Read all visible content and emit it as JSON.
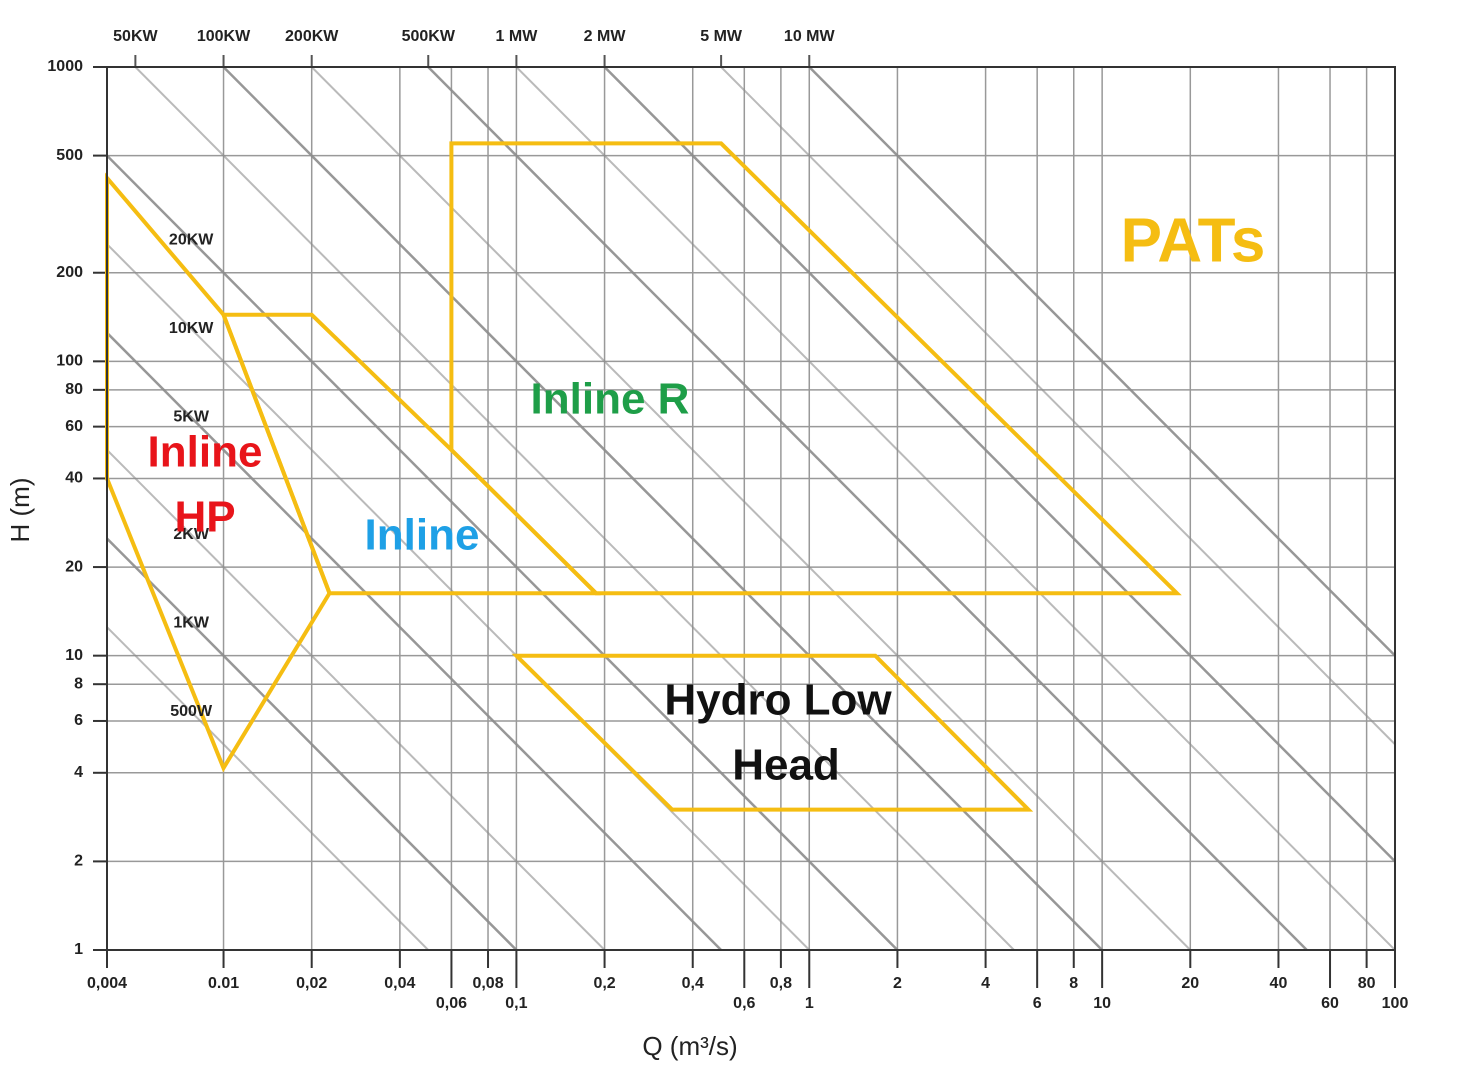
{
  "chart_data": {
    "type": "region",
    "x_label": "Q (m³/s)",
    "y_label": "H (m)",
    "xlim": [
      0.004,
      100
    ],
    "ylim": [
      1,
      1000
    ],
    "log_x": true,
    "log_y": true,
    "grid": true,
    "xticks": [
      {
        "value": 0.004,
        "label": "0,004"
      },
      0.01,
      {
        "value": 0.02,
        "label": "0,02"
      },
      {
        "value": 0.04,
        "label": "0,04"
      },
      {
        "value": 0.06,
        "label": "0,06"
      },
      {
        "value": 0.08,
        "label": "0,08"
      },
      {
        "value": 0.1,
        "label": "0,1"
      },
      {
        "value": 0.2,
        "label": "0,2"
      },
      {
        "value": 0.4,
        "label": "0,4"
      },
      {
        "value": 0.6,
        "label": "0,6"
      },
      {
        "value": 0.8,
        "label": "0,8"
      },
      1,
      2,
      4,
      6,
      8,
      10,
      20,
      40,
      60,
      80,
      100
    ],
    "yticks": [
      1,
      2,
      4,
      6,
      8,
      10,
      20,
      40,
      60,
      80,
      100,
      200,
      500,
      1000
    ],
    "power_lines": {
      "color": "#8c8c8c",
      "series": [
        {
          "name": "500W",
          "x": [
            5e-05,
            0.05
          ],
          "values": [
            1000,
            1
          ]
        },
        {
          "name": "1KW",
          "x": [
            0.0001,
            0.1
          ],
          "values": [
            1000,
            1
          ]
        },
        {
          "name": "2KW",
          "x": [
            0.0002,
            0.2
          ],
          "values": [
            1000,
            1
          ]
        },
        {
          "name": "5KW",
          "x": [
            0.0005,
            0.5
          ],
          "values": [
            1000,
            1
          ]
        },
        {
          "name": "10KW",
          "x": [
            0.001,
            1
          ],
          "values": [
            1000,
            1
          ]
        },
        {
          "name": "20KW",
          "x": [
            0.002,
            2
          ],
          "values": [
            1000,
            1
          ]
        },
        {
          "name": "50KW",
          "x": [
            0.005,
            5
          ],
          "values": [
            1000,
            1
          ]
        },
        {
          "name": "100KW",
          "x": [
            0.01,
            10
          ],
          "values": [
            1000,
            1
          ]
        },
        {
          "name": "200KW",
          "x": [
            0.02,
            20
          ],
          "values": [
            1000,
            1
          ]
        },
        {
          "name": "500KW",
          "x": [
            0.05,
            50
          ],
          "values": [
            1000,
            1
          ]
        },
        {
          "name": "1 MW",
          "x": [
            0.1,
            100
          ],
          "values": [
            1000,
            1
          ]
        },
        {
          "name": "2 MW",
          "x": [
            0.2,
            200
          ],
          "values": [
            1000,
            1
          ]
        },
        {
          "name": "5 MW",
          "x": [
            0.5,
            500
          ],
          "values": [
            1000,
            1
          ]
        },
        {
          "name": "10 MW",
          "x": [
            1,
            1000
          ],
          "values": [
            1000,
            1
          ]
        }
      ]
    },
    "regions": [
      {
        "label": [
          "Inline",
          "HP"
        ],
        "color": "#f5bd12",
        "label_color": "#e8141a",
        "x": [
          0.004,
          0.01,
          0.023,
          0.01,
          0.004
        ],
        "values": [
          420,
          144,
          16.3,
          4.15,
          40
        ]
      },
      {
        "label": [
          "Inline"
        ],
        "color": "#f5bd12",
        "label_color": "#1ea0e6",
        "x": [
          0.01,
          0.02,
          0.06,
          0.187,
          0.023
        ],
        "values": [
          144,
          144,
          50,
          16.3,
          16.3
        ]
      },
      {
        "label": [
          "Inline R"
        ],
        "color": "#f5bd12",
        "label_color": "#1e9e48",
        "x": [
          0.06,
          0.06,
          0.5,
          18,
          0.187
        ],
        "values": [
          50,
          550,
          550,
          16.3,
          16.3
        ]
      },
      {
        "label": [
          "Hydro Low",
          "Head"
        ],
        "color": "#f5bd12",
        "label_color": "#111111",
        "x": [
          0.1,
          1.68,
          5.6,
          0.34
        ],
        "values": [
          10,
          10,
          3,
          3
        ]
      }
    ],
    "annotations": [
      {
        "text": "PATs",
        "color": "#f5bd12"
      }
    ]
  }
}
